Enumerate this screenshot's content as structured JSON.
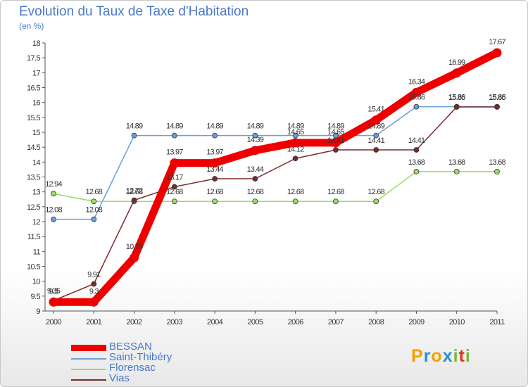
{
  "header": {
    "title": "Evolution du Taux de Taxe d'Habitation",
    "subtitle": "(en %)"
  },
  "chart_data": {
    "type": "line",
    "title": "Evolution du Taux de Taxe d'Habitation",
    "subtitle": "(en %)",
    "xlabel": "",
    "ylabel": "",
    "x": [
      2000,
      2001,
      2002,
      2003,
      2004,
      2005,
      2006,
      2007,
      2008,
      2009,
      2010,
      2011
    ],
    "ylim": [
      9,
      18
    ],
    "yticks": [
      9,
      9.5,
      10,
      10.5,
      11,
      11.5,
      12,
      12.5,
      13,
      13.5,
      14,
      14.5,
      15,
      15.5,
      16,
      16.5,
      17,
      17.5,
      18
    ],
    "ytick_labels": [
      "9",
      "9.5",
      "10",
      "10.5",
      "11",
      "11.5",
      "12",
      "12.5",
      "13",
      "13.5",
      "14",
      "14.5",
      "15",
      "15.5",
      "16",
      "16.5",
      "17",
      "17.5",
      "18"
    ],
    "grid": false,
    "legend_position": "bottom-left",
    "series": [
      {
        "name": "Saint-Thibéry",
        "color": "#6aa0d8",
        "values": [
          12.08,
          12.08,
          14.89,
          14.89,
          14.89,
          14.89,
          14.89,
          14.89,
          14.89,
          15.86,
          15.86,
          15.86
        ],
        "labels": [
          "12.08",
          "12.08",
          "14.89",
          "14.89",
          "14.89",
          "14.89",
          "14.89",
          "14.89",
          "14.89",
          "15.86",
          "15.86",
          "15.86"
        ]
      },
      {
        "name": "Florensac",
        "color": "#99dd66",
        "values": [
          12.94,
          12.68,
          12.68,
          12.68,
          12.68,
          12.68,
          12.68,
          12.68,
          12.68,
          13.68,
          13.68,
          13.68
        ],
        "labels": [
          "12.94",
          "12.68",
          "12.68",
          "12.68",
          "12.68",
          "12.68",
          "12.68",
          "12.68",
          "12.68",
          "13.68",
          "13.68",
          "13.68"
        ]
      },
      {
        "name": "Vias",
        "color": "#7a2a2a",
        "values": [
          9.35,
          9.91,
          12.72,
          13.17,
          13.44,
          13.44,
          14.12,
          14.41,
          14.41,
          14.41,
          15.85,
          15.85
        ],
        "labels": [
          "9.35",
          "9.91",
          "12.72",
          "13.17",
          "13.44",
          "13.44",
          "14.12",
          "14.41",
          "14.41",
          "14.41",
          "15.85",
          "15.85"
        ]
      },
      {
        "name": "BESSAN",
        "color": "#ee0000",
        "values": [
          9.3,
          9.3,
          10.79,
          13.97,
          13.97,
          14.39,
          14.65,
          14.65,
          15.41,
          16.34,
          16.99,
          17.67
        ],
        "labels": [
          "9.3",
          "9.3",
          "10.79",
          "13.97",
          "13.97",
          "14.39",
          "14.65",
          "14.65",
          "15.41",
          "16.34",
          "16.99",
          "17.67"
        ]
      }
    ]
  },
  "legend": [
    {
      "label": "BESSAN",
      "color": "#ee0000"
    },
    {
      "label": "Saint-Thibéry",
      "color": "#6aa0d8"
    },
    {
      "label": "Florensac",
      "color": "#99dd66"
    },
    {
      "label": "Vias",
      "color": "#7a2a2a"
    }
  ],
  "logo": {
    "letters": [
      "P",
      "r",
      "o",
      "x",
      "i",
      "t",
      "i"
    ],
    "colors": [
      "#f0a000",
      "#2a8fd8",
      "#f0a000",
      "#2a8fd8",
      "#6cbf3a",
      "#e83020",
      "#6cbf3a"
    ]
  }
}
